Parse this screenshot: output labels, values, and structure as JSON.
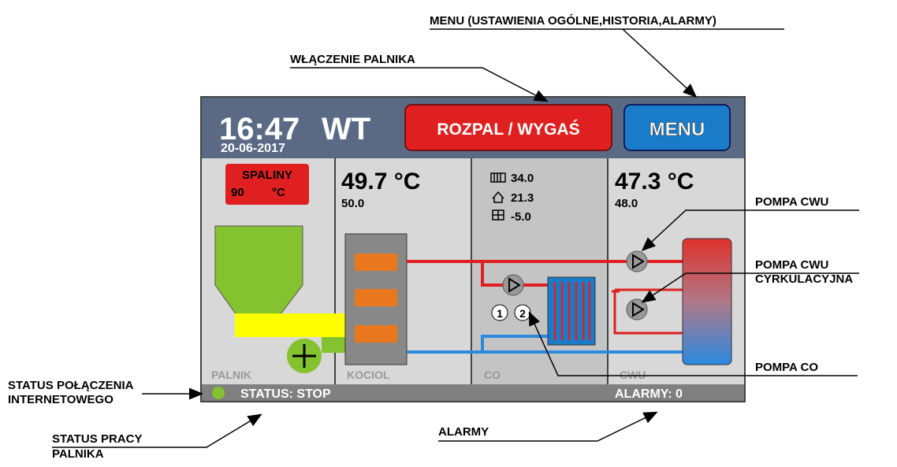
{
  "annotations": {
    "menu": "MENU (USTAWIENIA OGÓLNE,HISTORIA,ALARMY)",
    "burner_on": "WŁĄCZENIE PALNIKA",
    "pump_cwu": "POMPA CWU",
    "pump_circ": [
      "POMPA CWU",
      "CYRKULACYJNA"
    ],
    "pump_co": "POMPA CO",
    "internet": [
      "STATUS POŁĄCZENIA",
      "INTERNETOWEGO"
    ],
    "burner_status": [
      "STATUS PRACY",
      "PALNIKA"
    ],
    "alarms": "ALARMY"
  },
  "screen": {
    "time": "16:47",
    "day": "WT",
    "date": "20-06-2017",
    "button_ignite": "ROZPAL / WYGAŚ",
    "button_menu": "MENU",
    "palnik": {
      "flue_label": "SPALINY",
      "flue_value": "90",
      "flue_unit": "°C",
      "label": "PALNIK"
    },
    "kociol": {
      "temp": "49.7 °C",
      "set": "50.0",
      "label": "KOCIOL"
    },
    "co": {
      "radiator": "34.0",
      "room": "21.3",
      "outside": "-5.0",
      "pump1": "1",
      "pump2": "2",
      "label": "CO"
    },
    "cwu": {
      "temp": "47.3 °C",
      "set": "48.0",
      "label": "CWU"
    },
    "status": "STATUS: STOP",
    "alarms": "ALARMY: 0"
  }
}
